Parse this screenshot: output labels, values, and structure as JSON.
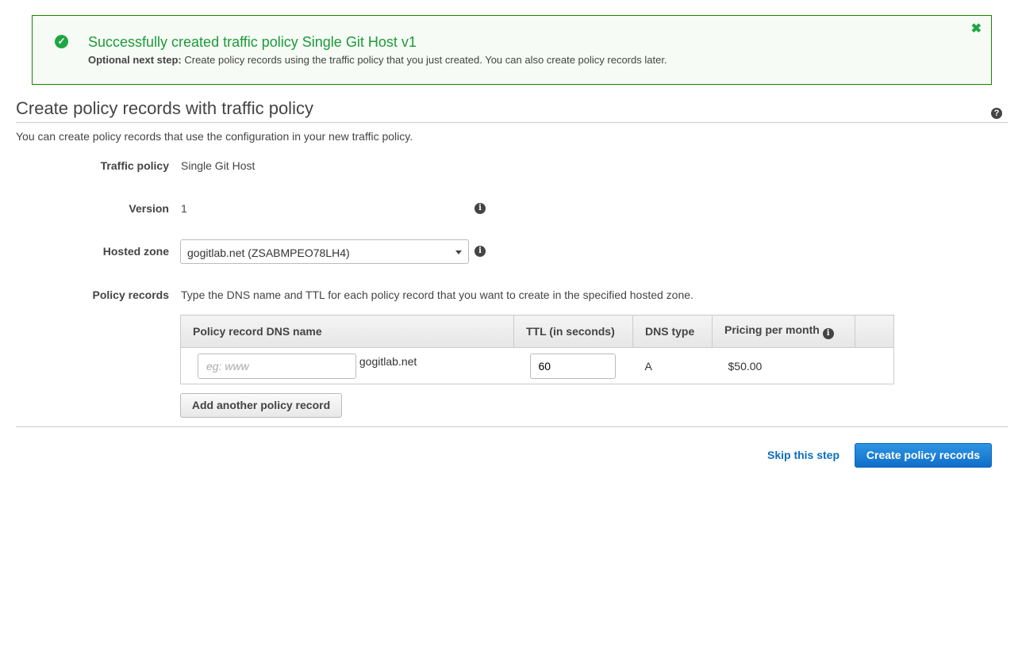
{
  "flash": {
    "title": "Successfully created traffic policy Single Git Host v1",
    "sub_bold": "Optional next step:",
    "sub_text": " Create policy records using the traffic policy that you just created. You can also create policy records later.",
    "close": "✖"
  },
  "page": {
    "title": "Create policy records with traffic policy",
    "description": "You can create policy records that use the configuration in your new traffic policy."
  },
  "form": {
    "traffic_policy_label": "Traffic policy",
    "traffic_policy_value": "Single Git Host",
    "version_label": "Version",
    "version_value": "1",
    "hosted_zone_label": "Hosted zone",
    "hosted_zone_value": "gogitlab.net (ZSABMPEO78LH4)",
    "policy_records_label": "Policy records",
    "policy_records_help": "Type the DNS name and TTL for each policy record that you want to create in the specified hosted zone."
  },
  "table": {
    "headers": [
      "Policy record DNS name",
      "TTL (in seconds)",
      "DNS type",
      "Pricing per month"
    ],
    "rows": [
      {
        "dns_placeholder": "eg: www",
        "domain": "gogitlab.net",
        "ttl": "60",
        "type": "A",
        "price": "$50.00"
      }
    ]
  },
  "buttons": {
    "add": "Add another policy record",
    "skip": "Skip this step",
    "create": "Create policy records"
  },
  "colors": {
    "success": "#1d9a3a",
    "primary": "#0f6ec8",
    "link": "#0d6ebe"
  }
}
